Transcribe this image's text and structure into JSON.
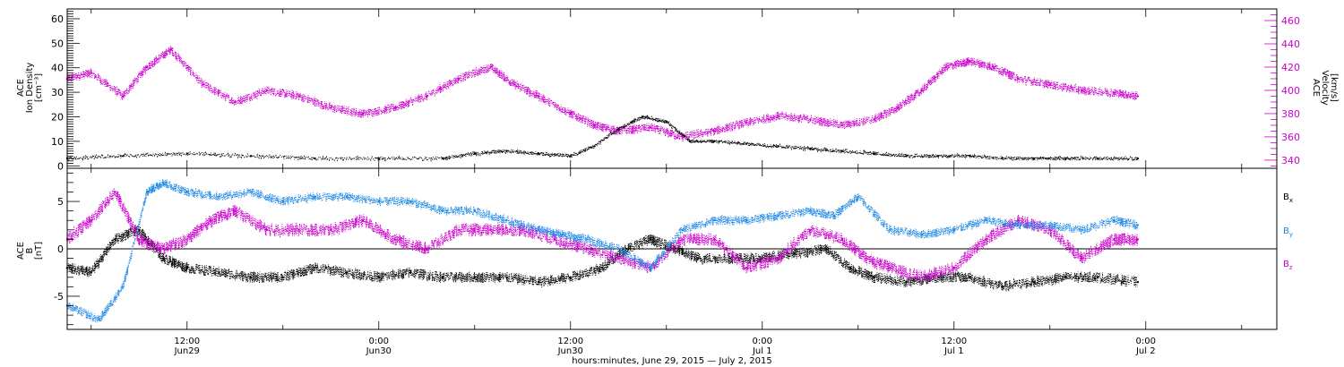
{
  "chart_data": {
    "type": "scatter",
    "x_axis": {
      "tick_times": [
        "12:00",
        "0:00",
        "12:00",
        "0:00",
        "12:00",
        "0:00"
      ],
      "tick_dates": [
        "Jun29",
        "Jun30",
        "Jun30",
        "Jul 1",
        "Jul 1",
        "Jul 2"
      ],
      "tick_hours": [
        12,
        24,
        36,
        48,
        60,
        72
      ],
      "range_hours": [
        4.5,
        80.2
      ],
      "label": "hours:minutes, June 29, 2015 — July  2, 2015"
    },
    "panels": [
      {
        "id": "plasma",
        "left_axis": {
          "label_lines": [
            "ACE",
            "Ion Density",
            "[cm⁻³]"
          ],
          "ticks": [
            "0",
            "10",
            "20",
            "30",
            "40",
            "50",
            "60"
          ],
          "tick_values": [
            0,
            10,
            20,
            30,
            40,
            50,
            60
          ],
          "range": [
            -1,
            64
          ],
          "color": "#000000"
        },
        "right_axis": {
          "label_lines": [
            "ACE",
            "Velocity",
            "[km/s]"
          ],
          "ticks": [
            "340",
            "360",
            "380",
            "400",
            "420",
            "440",
            "460"
          ],
          "tick_values": [
            340,
            360,
            380,
            400,
            420,
            440,
            460
          ],
          "range": [
            333,
            470
          ],
          "color": "#cc00cc"
        },
        "series": [
          {
            "color": "#000000",
            "axis": "left",
            "x_hours": [
              4.5,
              8,
              12,
              16,
              20,
              24,
              28,
              30,
              32,
              34,
              36,
              37.5,
              39,
              40.5,
              42,
              43.5,
              45,
              47,
              49,
              51,
              53,
              55,
              57,
              59,
              61,
              63,
              65,
              67,
              69,
              71.5
            ],
            "y": [
              3,
              4,
              5,
              4,
              3,
              3,
              3,
              5,
              6,
              5,
              4,
              8,
              15,
              20,
              18,
              10,
              10,
              9,
              8,
              7,
              6,
              5,
              4,
              4,
              4,
              3,
              3,
              3,
              3,
              3
            ]
          },
          {
            "color": "#cc00cc",
            "axis": "right",
            "x_hours": [
              4.5,
              6,
              8,
              9.5,
              11,
              13,
              15,
              17,
              19,
              21,
              23,
              25,
              27,
              29,
              31,
              32.5,
              34,
              36,
              37.5,
              39,
              41,
              43,
              45,
              47,
              49,
              51,
              53,
              55,
              56.5,
              58,
              59.5,
              61,
              62.5,
              64,
              66,
              68,
              70,
              71.5
            ],
            "y": [
              410,
              415,
              395,
              420,
              435,
              405,
              390,
              400,
              395,
              385,
              380,
              385,
              395,
              410,
              420,
              405,
              395,
              380,
              370,
              365,
              368,
              360,
              365,
              372,
              378,
              375,
              370,
              375,
              385,
              400,
              420,
              425,
              420,
              410,
              405,
              400,
              398,
              395
            ]
          }
        ]
      },
      {
        "id": "imf",
        "left_axis": {
          "label_lines": [
            "ACE",
            "B",
            "[nT]"
          ],
          "ticks": [
            "-5",
            "0",
            "5"
          ],
          "tick_values": [
            -5,
            0,
            5
          ],
          "range": [
            -8.5,
            8.5
          ],
          "zero_line": true,
          "color": "#000000"
        },
        "series": [
          {
            "name": "Bx",
            "color": "#000000",
            "x_hours": [
              4.5,
              6,
              7.5,
              9,
              10.5,
              12,
              14,
              16,
              18,
              20,
              22,
              24,
              26,
              28,
              30,
              32,
              34,
              36,
              38,
              39.5,
              41,
              42.5,
              44,
              46,
              48,
              50,
              52,
              53.5,
              55,
              57,
              59,
              61,
              63,
              65,
              67,
              69,
              71.5
            ],
            "y": [
              -2,
              -2.5,
              1,
              2,
              -1,
              -2,
              -2.5,
              -3,
              -3,
              -2,
              -2.5,
              -3,
              -2.5,
              -3,
              -3,
              -3,
              -3.5,
              -3,
              -2,
              0,
              1,
              0,
              -1,
              -1,
              -1,
              -0.5,
              0,
              -2,
              -3,
              -3.5,
              -3,
              -3,
              -4,
              -3.5,
              -3,
              -3,
              -3.5
            ]
          },
          {
            "name": "By",
            "color": "#1e88e5",
            "x_hours": [
              4.5,
              6.5,
              8,
              9.5,
              10.5,
              12,
              14,
              16,
              18,
              20,
              22,
              24,
              26,
              28,
              30,
              32,
              34,
              35.5,
              37,
              39,
              41,
              43,
              45,
              47,
              49,
              51,
              52.5,
              54,
              56,
              58,
              60,
              62,
              64,
              66,
              68,
              70,
              71.5
            ],
            "y": [
              -6,
              -7.5,
              -4,
              6,
              7,
              6,
              5.5,
              6,
              5,
              5.5,
              5.5,
              5,
              5,
              4,
              4,
              3,
              2,
              1.5,
              1,
              0,
              -2,
              2,
              3,
              3,
              3.5,
              4,
              3.5,
              5.5,
              2,
              1.5,
              2,
              3,
              2.5,
              2.5,
              2,
              3,
              2.5
            ]
          },
          {
            "name": "Bz",
            "color": "#cc00cc",
            "x_hours": [
              4.5,
              6,
              7.5,
              9,
              10.5,
              12,
              13.5,
              15,
              17,
              19,
              21,
              23,
              25,
              27,
              29,
              31,
              33,
              35,
              37,
              39,
              41,
              43,
              45,
              47,
              49,
              51,
              53,
              54.5,
              56,
              58,
              60,
              62,
              64,
              66,
              68,
              70,
              71.5
            ],
            "y": [
              1,
              3,
              6,
              1,
              0,
              1,
              3,
              4,
              2,
              2,
              2,
              3,
              1,
              0,
              2,
              2,
              2,
              1,
              0,
              -1,
              -2,
              1,
              1,
              -2,
              -1,
              2,
              1,
              -1,
              -2,
              -3,
              -2,
              1,
              3,
              2,
              -1,
              1,
              1
            ]
          }
        ],
        "legend": [
          {
            "base": "B",
            "sub": "x",
            "color": "#000000"
          },
          {
            "base": "B",
            "sub": "y",
            "color": "#1e88e5"
          },
          {
            "base": "B",
            "sub": "z",
            "color": "#cc00cc"
          }
        ]
      }
    ]
  }
}
